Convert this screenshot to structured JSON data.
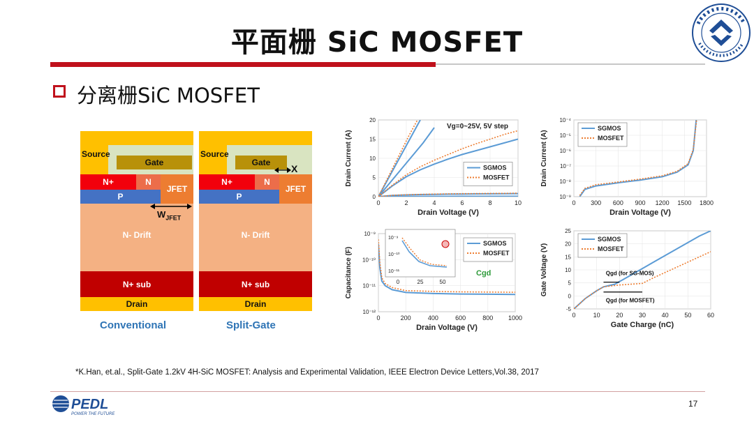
{
  "slide": {
    "title": "平面栅 SiC MOSFET",
    "subtitle": "分离栅SiC MOSFET",
    "reference": "*K.Han, et.al., Split-Gate 1.2kV 4H-SiC MOSFET: Analysis and Experimental Validation, IEEE Electron Device Letters,Vol.38, 2017",
    "page_number": "17",
    "accent_color": "#c0111c"
  },
  "logos": {
    "university_seal": "浙江大学 1897 ZHEJIANG UNIVERSITY",
    "pedl_logo": "PEDL POWER THE FUTURE"
  },
  "cross_sections": [
    {
      "caption": "Conventional",
      "labels": {
        "source": "Source",
        "gate": "Gate",
        "n_plus": "N+",
        "n": "N",
        "p": "P",
        "jfet": "JFET",
        "drift": "N- Drift",
        "sub": "N+ sub",
        "drain": "Drain",
        "dimension": "W",
        "dimension_sub": "JFET"
      }
    },
    {
      "caption": "Split-Gate",
      "labels": {
        "source": "Source",
        "gate": "Gate",
        "n_plus": "N+",
        "n": "N",
        "p": "P",
        "jfet": "JFET",
        "drift": "N- Drift",
        "sub": "N+ sub",
        "drain": "Drain",
        "dimension": "X"
      }
    }
  ],
  "chart_data": [
    {
      "type": "line",
      "xlabel": "Drain Voltage (V)",
      "ylabel": "Drain Current (A)",
      "xlim": [
        0,
        10
      ],
      "ylim": [
        0,
        20
      ],
      "xticks": [
        "0",
        "2",
        "4",
        "6",
        "8",
        "10"
      ],
      "yticks": [
        "0",
        "5",
        "10",
        "15",
        "20"
      ],
      "annotation": "Vg=0~25V, 5V step",
      "legend": [
        "SGMOS",
        "MOSFET"
      ],
      "legend_position": "center-right",
      "series": [
        {
          "name": "SGMOS",
          "color": "#5b9bd5",
          "style": "solid",
          "curves": [
            {
              "x": [
                0,
                1,
                2,
                3,
                4,
                5,
                6,
                7,
                8,
                9,
                10
              ],
              "y": [
                0,
                2.8,
                5.2,
                7.0,
                8.5,
                9.8,
                11.0,
                12.0,
                13.0,
                14.0,
                15.0
              ]
            },
            {
              "x": [
                0,
                1,
                2,
                3,
                4,
                5,
                6,
                7,
                8,
                9,
                10
              ],
              "y": [
                0,
                0.3,
                0.45,
                0.55,
                0.6,
                0.65,
                0.7,
                0.72,
                0.75,
                0.78,
                0.8
              ]
            },
            {
              "x": [
                0,
                1,
                2,
                3,
                4,
                5,
                6,
                7,
                8,
                9,
                10
              ],
              "y": [
                0,
                0.05,
                0.06,
                0.07,
                0.08,
                0.08,
                0.09,
                0.09,
                0.1,
                0.1,
                0.1
              ]
            },
            {
              "x": [
                0,
                1.2,
                2.4,
                3.0
              ],
              "y": [
                0,
                8,
                16,
                20
              ]
            },
            {
              "x": [
                0,
                1.6,
                3.2,
                4.0
              ],
              "y": [
                0,
                7,
                14,
                18
              ]
            }
          ]
        },
        {
          "name": "MOSFET",
          "color": "#ed7d31",
          "style": "dotted",
          "curves": [
            {
              "x": [
                0,
                1,
                2,
                3,
                4,
                5,
                6,
                7,
                8,
                9,
                10
              ],
              "y": [
                0,
                3.0,
                5.7,
                7.8,
                9.5,
                11.0,
                12.5,
                13.8,
                15.0,
                16.2,
                17.2
              ]
            },
            {
              "x": [
                0,
                1,
                2,
                3,
                4,
                5,
                6,
                7,
                8,
                9,
                10
              ],
              "y": [
                0,
                0.35,
                0.5,
                0.6,
                0.68,
                0.73,
                0.78,
                0.8,
                0.83,
                0.86,
                0.9
              ]
            },
            {
              "x": [
                0,
                1.1,
                2.2,
                2.8
              ],
              "y": [
                0,
                8,
                16,
                20
              ]
            }
          ]
        }
      ]
    },
    {
      "type": "line",
      "xlabel": "Drain Voltage (V)",
      "ylabel": "Drain Current (A)",
      "xlim": [
        0,
        1800
      ],
      "yscale": "log",
      "ylim": [
        1e-09,
        0.0001
      ],
      "xticks": [
        "0",
        "300",
        "600",
        "900",
        "1200",
        "1500",
        "1800"
      ],
      "yticks": [
        "10⁻⁹",
        "10⁻⁸",
        "10⁻⁷",
        "10⁻⁶",
        "10⁻⁵",
        "10⁻⁴"
      ],
      "legend": [
        "SGMOS",
        "MOSFET"
      ],
      "legend_position": "top-left",
      "series": [
        {
          "name": "SGMOS",
          "color": "#5b9bd5",
          "style": "solid",
          "x": [
            80,
            150,
            300,
            600,
            900,
            1200,
            1400,
            1550,
            1620,
            1660
          ],
          "y": [
            1e-09,
            3e-09,
            5e-09,
            8e-09,
            1.2e-08,
            2e-08,
            4e-08,
            1.2e-07,
            1e-06,
            0.0001
          ]
        },
        {
          "name": "MOSFET",
          "color": "#ed7d31",
          "style": "dotted",
          "x": [
            80,
            150,
            300,
            600,
            900,
            1200,
            1400,
            1550,
            1620,
            1665
          ],
          "y": [
            1.2e-09,
            3.5e-09,
            6e-09,
            9e-09,
            1.4e-08,
            2.3e-08,
            4.5e-08,
            1.4e-07,
            1.2e-06,
            0.0001
          ]
        }
      ]
    },
    {
      "type": "line",
      "xlabel": "Drain Voltage (V)",
      "ylabel": "Capacitance (F)",
      "xlim": [
        0,
        1000
      ],
      "yscale": "log",
      "ylim": [
        1e-12,
        1e-09
      ],
      "xticks": [
        "0",
        "200",
        "400",
        "600",
        "800",
        "1000"
      ],
      "yticks": [
        "10⁻¹²",
        "10⁻¹¹",
        "10⁻¹⁰",
        "10⁻⁹"
      ],
      "annotation": "Cgd",
      "legend": [
        "SGMOS",
        "MOSFET"
      ],
      "legend_position": "top-right",
      "inset": {
        "xticks": [
          "0",
          "25",
          "50"
        ],
        "yticks": [
          "10⁻¹¹",
          "10⁻¹⁰",
          "10⁻⁹"
        ]
      },
      "series": [
        {
          "name": "SGMOS",
          "color": "#5b9bd5",
          "style": "solid",
          "x": [
            0,
            10,
            25,
            50,
            100,
            200,
            400,
            600,
            800,
            1000
          ],
          "y": [
            4e-10,
            5e-11,
            1.5e-11,
            1e-11,
            7e-12,
            5.5e-12,
            5e-12,
            4.8e-12,
            4.7e-12,
            4.6e-12
          ]
        },
        {
          "name": "MOSFET",
          "color": "#ed7d31",
          "style": "dotted",
          "x": [
            0,
            10,
            25,
            50,
            100,
            200,
            400,
            600,
            800,
            1000
          ],
          "y": [
            6e-10,
            8e-11,
            2e-11,
            1.2e-11,
            8.5e-12,
            6.5e-12,
            6e-12,
            5.8e-12,
            5.7e-12,
            5.6e-12
          ]
        }
      ]
    },
    {
      "type": "line",
      "xlabel": "Gate Charge (nC)",
      "ylabel": "Gate Voltage (V)",
      "xlim": [
        0,
        60
      ],
      "ylim": [
        -5,
        25
      ],
      "xticks": [
        "0",
        "10",
        "20",
        "30",
        "40",
        "50",
        "60"
      ],
      "yticks": [
        "-5",
        "0",
        "5",
        "10",
        "15",
        "20",
        "25"
      ],
      "legend": [
        "SGMOS",
        "MOSFET"
      ],
      "legend_position": "top-left",
      "annotations": [
        "Qgd (for SG-MOS)",
        "Qgd (for MOSFET)"
      ],
      "series": [
        {
          "name": "SGMOS",
          "color": "#5b9bd5",
          "style": "solid",
          "x": [
            0,
            5,
            10,
            13,
            18,
            25,
            35,
            45,
            55,
            60
          ],
          "y": [
            -5,
            -1,
            2,
            3.5,
            4.5,
            8,
            13,
            18,
            23,
            25
          ]
        },
        {
          "name": "MOSFET",
          "color": "#ed7d31",
          "style": "dotted",
          "x": [
            0,
            5,
            10,
            13,
            20,
            30,
            35,
            45,
            55,
            60
          ],
          "y": [
            -5,
            -1,
            2,
            3.5,
            4.2,
            4.8,
            7,
            11,
            15,
            17
          ]
        }
      ]
    }
  ]
}
